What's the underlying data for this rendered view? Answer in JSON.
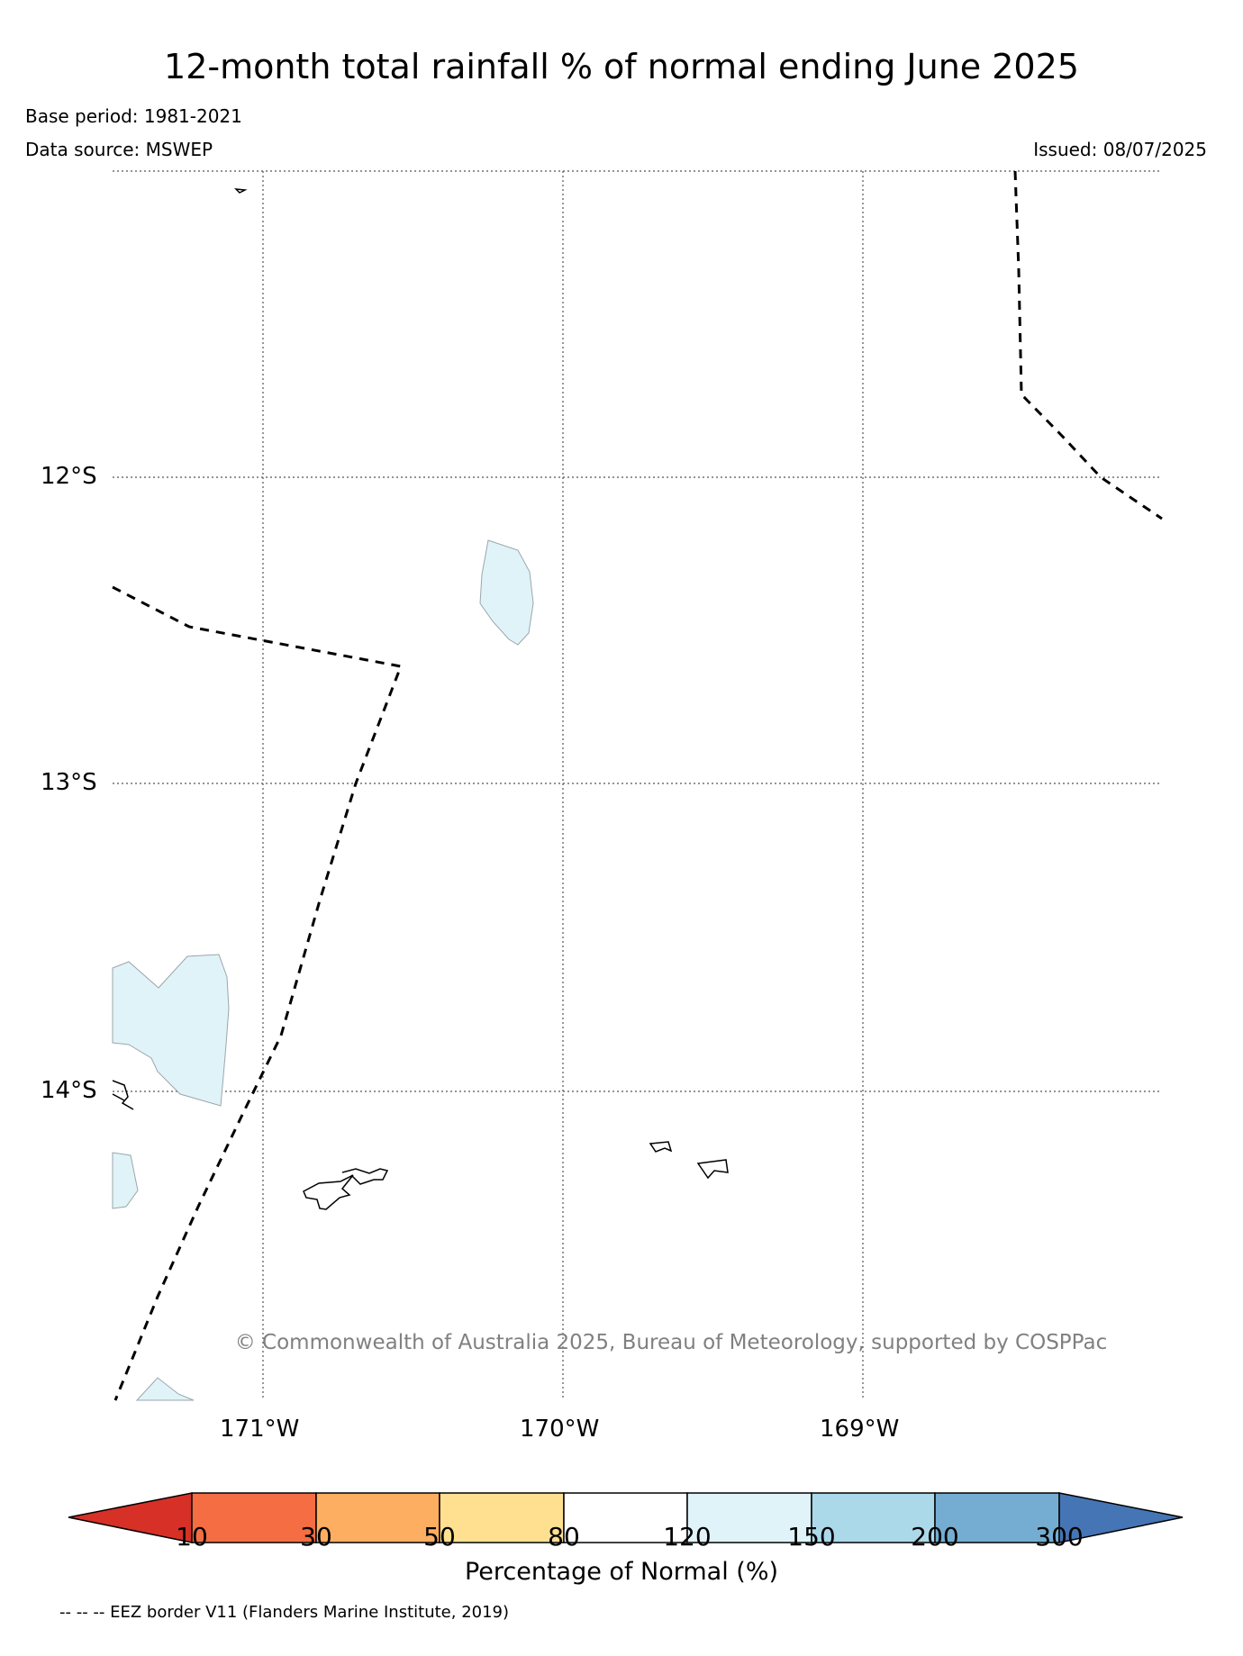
{
  "header": {
    "title": "12-month total rainfall % of normal ending June 2025",
    "base_period": "Base period: 1981-2021",
    "data_source": "Data source: MSWEP",
    "issued": "Issued: 08/07/2025"
  },
  "map": {
    "lat_labels": [
      "12°S",
      "13°S",
      "14°S"
    ],
    "lon_labels": [
      "171°W",
      "170°W",
      "169°W"
    ],
    "copyright": "© Commonwealth of Australia 2025, Bureau of Meteorology, supported by COSPPac",
    "colors": {
      "land_fill": "#e0f3f8",
      "eez_border": "#000000",
      "grid": "#555555"
    }
  },
  "colorbar": {
    "label": "Percentage of Normal (%)",
    "ticks": [
      "10",
      "30",
      "50",
      "80",
      "120",
      "150",
      "200",
      "300"
    ],
    "colors": [
      "#d73027",
      "#f46d43",
      "#fdae61",
      "#fee090",
      "#ffffff",
      "#e0f3f8",
      "#abd9e9",
      "#74add1",
      "#4575b4"
    ]
  },
  "legend_note": "-- -- -- EEZ border V11 (Flanders Marine Institute, 2019)"
}
